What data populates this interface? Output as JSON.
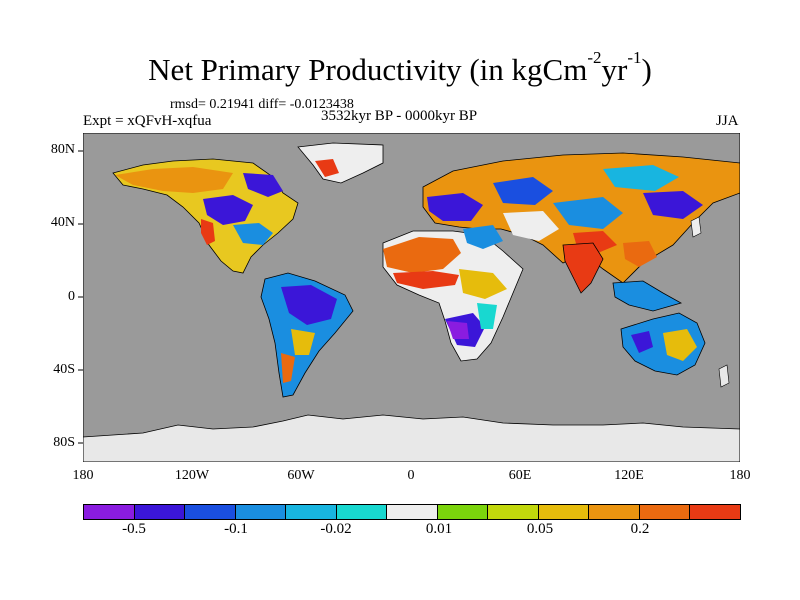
{
  "header": {
    "title_main": "Net Primary Productivity (in kgCm",
    "title_sup1": "-2",
    "title_mid": "yr",
    "title_sup2": "-1",
    "title_close": ")",
    "stats": "rmsd= 0.21941 diff= -0.0123438",
    "experiment": "Expt = xQFvH-xqfua",
    "period": "3532kyr BP - 0000kyr BP",
    "season": "JJA"
  },
  "axes": {
    "y_ticks": [
      "80N",
      "40N",
      "0",
      "40S",
      "80S"
    ],
    "x_ticks": [
      "180",
      "120W",
      "60W",
      "0",
      "60E",
      "120E",
      "180"
    ]
  },
  "colorbar": {
    "colors": [
      "#8a1ce0",
      "#3b16d8",
      "#1a4fe0",
      "#1a8ee0",
      "#18b5e0",
      "#18d8d0",
      "#eeeeee",
      "#7bd40c",
      "#c2d80c",
      "#e6bc0c",
      "#ea9410",
      "#ea6a10",
      "#e83a14"
    ],
    "labels": [
      "-0.5",
      "-0.1",
      "-0.02",
      "0.01",
      "0.05",
      "0.2"
    ]
  },
  "map_colors": {
    "ocean": "#9a9a9a",
    "ice": "#e8e8e8",
    "coast": "#000000"
  }
}
